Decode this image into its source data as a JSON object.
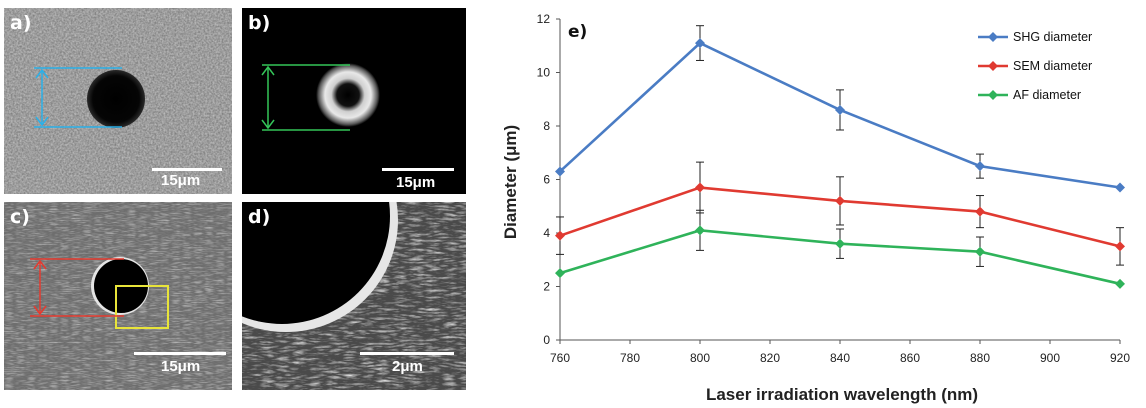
{
  "panels": {
    "a": {
      "label": "a)",
      "scale": "15μm"
    },
    "b": {
      "label": "b)",
      "scale": "15μm"
    },
    "c": {
      "label": "c)",
      "scale": "15μm"
    },
    "d": {
      "label": "d)",
      "scale": "2μm"
    }
  },
  "chart_data": {
    "type": "line",
    "panel_label": "e)",
    "xlabel": "Laser irradiation wavelength (nm)",
    "ylabel": "Diameter (μm)",
    "xlim": [
      760,
      920
    ],
    "ylim": [
      0,
      12
    ],
    "x_ticks": [
      760,
      780,
      800,
      820,
      840,
      860,
      880,
      900,
      920
    ],
    "y_ticks": [
      0,
      2,
      4,
      6,
      8,
      10,
      12
    ],
    "grid": false,
    "legend_position": "top-right",
    "x": [
      760,
      800,
      840,
      880,
      920
    ],
    "series": [
      {
        "name": "SHG diameter",
        "color": "#4a7cc4",
        "marker": "diamond",
        "values": [
          6.3,
          11.1,
          8.6,
          6.5,
          5.7
        ],
        "errors": [
          null,
          0.65,
          0.75,
          0.45,
          null
        ]
      },
      {
        "name": "SEM diameter",
        "color": "#e03a31",
        "marker": "diamond",
        "values": [
          3.9,
          5.7,
          5.2,
          4.8,
          3.5
        ],
        "errors": [
          0.7,
          0.95,
          0.9,
          0.6,
          0.7
        ]
      },
      {
        "name": "AF diameter",
        "color": "#2fb35a",
        "marker": "diamond",
        "values": [
          2.5,
          4.1,
          3.6,
          3.3,
          2.1
        ],
        "errors": [
          null,
          0.75,
          0.55,
          0.55,
          null
        ]
      }
    ]
  },
  "colors": {
    "panel_a_marker": "#2bb0e8",
    "panel_b_marker": "#34c559",
    "panel_c_marker": "#e53a2f",
    "panel_c_box": "#e8e43a"
  }
}
